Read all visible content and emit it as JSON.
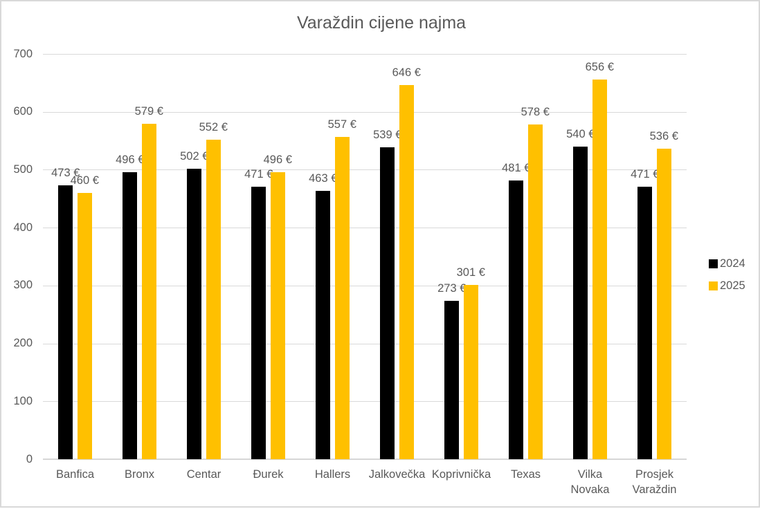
{
  "chart_data": {
    "type": "bar",
    "title": "Varaždin cijene najma",
    "categories": [
      "Banfica",
      "Bronx",
      "Centar",
      "Đurek",
      "Hallers",
      "Jalkovečka",
      "Koprivnička",
      "Texas",
      "Vilka Novaka",
      "Prosjek Varaždin"
    ],
    "category_label_lines": [
      [
        "Banfica"
      ],
      [
        "Bronx"
      ],
      [
        "Centar"
      ],
      [
        "Đurek"
      ],
      [
        "Hallers"
      ],
      [
        "Jalkovečka"
      ],
      [
        "Koprivnička"
      ],
      [
        "Texas"
      ],
      [
        "Vilka",
        "Novaka"
      ],
      [
        "Prosjek",
        "Varaždin"
      ]
    ],
    "series": [
      {
        "name": "2024",
        "color": "#000000",
        "values": [
          473,
          496,
          502,
          471,
          463,
          539,
          273,
          481,
          540,
          471
        ]
      },
      {
        "name": "2025",
        "color": "#FFC000",
        "values": [
          460,
          579,
          552,
          496,
          557,
          646,
          301,
          578,
          656,
          536
        ]
      }
    ],
    "value_suffix": " €",
    "y_ticks": [
      0,
      100,
      200,
      300,
      400,
      500,
      600,
      700
    ],
    "ylim": [
      0,
      700
    ],
    "xlabel": "",
    "ylabel": "",
    "grid": true,
    "legend_position": "right",
    "colors": {
      "grid": "#D9D9D9",
      "axis_line": "#D6D6D6",
      "text": "#595959",
      "bar_2024": "#000000",
      "bar_2025": "#FFC000"
    }
  }
}
